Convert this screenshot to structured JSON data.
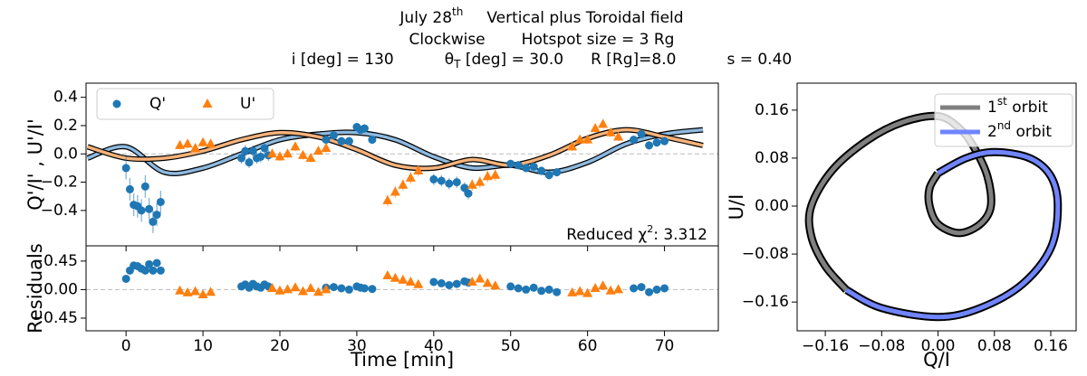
{
  "suptitle": {
    "line1": [
      "July 28",
      "th",
      "Vertical plus Toroidal field"
    ],
    "line2": [
      "Clockwise",
      "Hotspot size = 3 Rg"
    ],
    "line3": [
      "i [deg] = 130",
      "θ",
      "T",
      " [deg] = 30.0",
      "R [Rg]=8.0",
      "s = 0.40"
    ]
  },
  "chart_data": [
    {
      "type": "scatter",
      "ylabel": "Q'/I' , U'/I'",
      "xlim": [
        -5.2,
        77
      ],
      "ylim": [
        -0.65,
        0.5
      ],
      "yticks": [
        0.4,
        0.2,
        {
          "value": 0,
          "label": "0.0"
        },
        {
          "value": -0.2,
          "label": "−0.2"
        },
        {
          "value": -0.4,
          "label": "−0.4"
        }
      ],
      "hline": 0,
      "legend": "upper left",
      "annotation": [
        "Reduced χ",
        "2",
        ":  3.312"
      ],
      "series": [
        {
          "name": "Q'",
          "color": "#1f77b4",
          "marker": "circle",
          "x": [
            0,
            0.5,
            1,
            1.5,
            2,
            2.5,
            3,
            3.5,
            4,
            4.5,
            15,
            15.5,
            16,
            16.5,
            17,
            17.5,
            18,
            18.5,
            26,
            27,
            28,
            29,
            30,
            30.5,
            31,
            32,
            40,
            41,
            42,
            43,
            44,
            44.5,
            50,
            51,
            52,
            53,
            54,
            55,
            56,
            66,
            67,
            68,
            69,
            70
          ],
          "values": [
            -0.1,
            -0.25,
            -0.36,
            -0.37,
            -0.4,
            -0.23,
            -0.39,
            -0.48,
            -0.43,
            -0.34,
            -0.03,
            0.02,
            -0.06,
            0.02,
            -0.03,
            -0.02,
            0.04,
            -0.01,
            0.1,
            0.13,
            0.09,
            0.09,
            0.19,
            0.17,
            0.18,
            0.1,
            -0.18,
            -0.19,
            -0.21,
            -0.2,
            -0.24,
            -0.28,
            -0.07,
            -0.08,
            -0.1,
            -0.09,
            -0.12,
            -0.15,
            -0.13,
            0.1,
            0.14,
            0.06,
            0.08,
            0.09
          ],
          "errors": [
            0.08,
            0.08,
            0.08,
            0.08,
            0.08,
            0.08,
            0.08,
            0.08,
            0.08,
            0.08,
            0.04,
            0.04,
            0.04,
            0.04,
            0.04,
            0.04,
            0.04,
            0.04,
            0.03,
            0.03,
            0.03,
            0.03,
            0.03,
            0.03,
            0.03,
            0.03,
            0.04,
            0.04,
            0.04,
            0.04,
            0.04,
            0.04,
            0.03,
            0.03,
            0.03,
            0.03,
            0.03,
            0.03,
            0.03,
            0.03,
            0.03,
            0.03,
            0.03,
            0.03
          ]
        },
        {
          "name": "U'",
          "color": "#ff7f0e",
          "marker": "triangle",
          "x": [
            7,
            8,
            9,
            10,
            11,
            19,
            20,
            21,
            22,
            23,
            24,
            25,
            26,
            34,
            35,
            36,
            37,
            38,
            45,
            46,
            47,
            48,
            58,
            59,
            60,
            61,
            62,
            63,
            64
          ],
          "values": [
            0.06,
            0.07,
            0.04,
            0.08,
            0.07,
            0.0,
            -0.02,
            0.0,
            0.05,
            -0.01,
            -0.03,
            0.02,
            0.04,
            -0.33,
            -0.27,
            -0.22,
            -0.17,
            -0.12,
            -0.22,
            -0.2,
            -0.16,
            -0.15,
            0.05,
            0.1,
            0.1,
            0.18,
            0.21,
            0.15,
            0.12
          ],
          "errors": [
            0.03,
            0.03,
            0.03,
            0.03,
            0.03,
            0.03,
            0.03,
            0.03,
            0.03,
            0.03,
            0.03,
            0.03,
            0.03,
            0.04,
            0.04,
            0.04,
            0.04,
            0.04,
            0.04,
            0.04,
            0.04,
            0.04,
            0.03,
            0.03,
            0.03,
            0.03,
            0.03,
            0.03,
            0.03
          ]
        }
      ],
      "lines": [
        {
          "color": "#8db9df",
          "x": [
            -5,
            0,
            5,
            10,
            15,
            20,
            25,
            30,
            35,
            40,
            45,
            50,
            55,
            60,
            65,
            70,
            75
          ],
          "values": [
            -0.03,
            0.05,
            -0.13,
            -0.1,
            0.0,
            0.1,
            0.14,
            0.15,
            0.1,
            -0.02,
            -0.1,
            -0.08,
            -0.13,
            -0.06,
            0.07,
            0.14,
            0.17
          ]
        },
        {
          "color": "#f7b27a",
          "x": [
            -5,
            0,
            5,
            10,
            15,
            20,
            25,
            30,
            35,
            40,
            45,
            50,
            55,
            60,
            65,
            70,
            75
          ],
          "values": [
            0.05,
            -0.03,
            -0.03,
            0.02,
            0.1,
            0.15,
            0.12,
            0.03,
            -0.08,
            -0.1,
            -0.04,
            -0.08,
            -0.01,
            0.11,
            0.17,
            0.12,
            0.06
          ]
        }
      ]
    },
    {
      "type": "scatter",
      "xlabel": "Time [min]",
      "ylabel": "Residuals",
      "xlim": [
        -5.2,
        77
      ],
      "ylim": [
        -0.65,
        0.69
      ],
      "xticks": [
        0,
        10,
        20,
        30,
        40,
        50,
        60,
        70
      ],
      "yticks": [
        0.45,
        {
          "value": 0,
          "label": "0.00"
        },
        {
          "value": -0.45,
          "label": "−0.45"
        }
      ],
      "hline": 0,
      "series": [
        {
          "color": "#1f77b4",
          "marker": "circle",
          "x": [
            0,
            0.5,
            1,
            1.5,
            2,
            2.5,
            3,
            3.5,
            4,
            4.5,
            15,
            15.5,
            16,
            16.5,
            17,
            17.5,
            18,
            18.5,
            26,
            27,
            28,
            29,
            30,
            30.5,
            31,
            32,
            40,
            41,
            42,
            43,
            44,
            44.5,
            50,
            51,
            52,
            53,
            54,
            55,
            56,
            66,
            67,
            68,
            69,
            70
          ],
          "values": [
            0.17,
            0.3,
            0.38,
            0.37,
            0.33,
            0.3,
            0.4,
            0.3,
            0.42,
            0.3,
            0.05,
            0.08,
            0.03,
            0.09,
            0.05,
            0.03,
            0.08,
            0.05,
            0.03,
            0.04,
            0.02,
            0.0,
            0.05,
            0.03,
            0.02,
            0.01,
            0.12,
            0.1,
            0.07,
            0.09,
            0.13,
            0.11,
            0.05,
            0.02,
            0.0,
            0.03,
            -0.02,
            0.0,
            -0.04,
            0.02,
            0.04,
            -0.04,
            0.0,
            0.02
          ]
        },
        {
          "color": "#ff7f0e",
          "marker": "triangle",
          "x": [
            7,
            8,
            9,
            10,
            11,
            19,
            20,
            21,
            22,
            23,
            24,
            25,
            26,
            34,
            35,
            36,
            37,
            38,
            45,
            46,
            47,
            48,
            58,
            59,
            60,
            61,
            62,
            63,
            64
          ],
          "values": [
            -0.02,
            -0.05,
            -0.03,
            -0.08,
            -0.04,
            0.02,
            -0.02,
            0.0,
            0.03,
            -0.03,
            0.02,
            -0.04,
            0.0,
            0.22,
            0.18,
            0.15,
            0.12,
            0.08,
            0.12,
            0.17,
            0.1,
            0.06,
            -0.05,
            -0.03,
            -0.06,
            0.02,
            0.06,
            -0.02,
            0.0
          ]
        }
      ]
    },
    {
      "type": "line",
      "xlabel": "Q/I",
      "ylabel": "U/I",
      "xlim": [
        -0.2,
        0.196
      ],
      "ylim": [
        -0.208,
        0.205
      ],
      "xticks": [
        {
          "value": -0.16,
          "label": "−0.16"
        },
        {
          "value": -0.08,
          "label": "−0.08"
        },
        {
          "value": 0,
          "label": "0.00"
        },
        0.08,
        0.16
      ],
      "yticks": [
        0.16,
        0.08,
        {
          "value": 0,
          "label": "0.00"
        },
        {
          "value": -0.08,
          "label": "−0.08"
        },
        {
          "value": -0.16,
          "label": "−0.16"
        }
      ],
      "legend": "upper right",
      "series": [
        {
          "name": [
            "1",
            "st",
            " orbit"
          ],
          "color": "#808080",
          "x": [
            0.0,
            -0.012,
            -0.012,
            0.0,
            0.03,
            0.06,
            0.075,
            0.07,
            0.05,
            0.03,
            0.0,
            -0.05,
            -0.1,
            -0.15,
            -0.18,
            -0.18,
            -0.16,
            -0.13
          ],
          "values": [
            0.055,
            0.03,
            0.0,
            -0.03,
            -0.045,
            -0.03,
            0.0,
            0.05,
            0.1,
            0.13,
            0.15,
            0.14,
            0.11,
            0.06,
            0.0,
            -0.05,
            -0.1,
            -0.14
          ]
        },
        {
          "name": [
            "2",
            "nd",
            " orbit"
          ],
          "color": "#7085ff",
          "x": [
            0.0,
            0.04,
            0.08,
            0.13,
            0.16,
            0.17,
            0.16,
            0.12,
            0.06,
            0.0,
            -0.08,
            -0.13
          ],
          "values": [
            0.055,
            0.08,
            0.09,
            0.08,
            0.05,
            0.0,
            -0.07,
            -0.13,
            -0.17,
            -0.185,
            -0.17,
            -0.14
          ]
        }
      ]
    }
  ]
}
